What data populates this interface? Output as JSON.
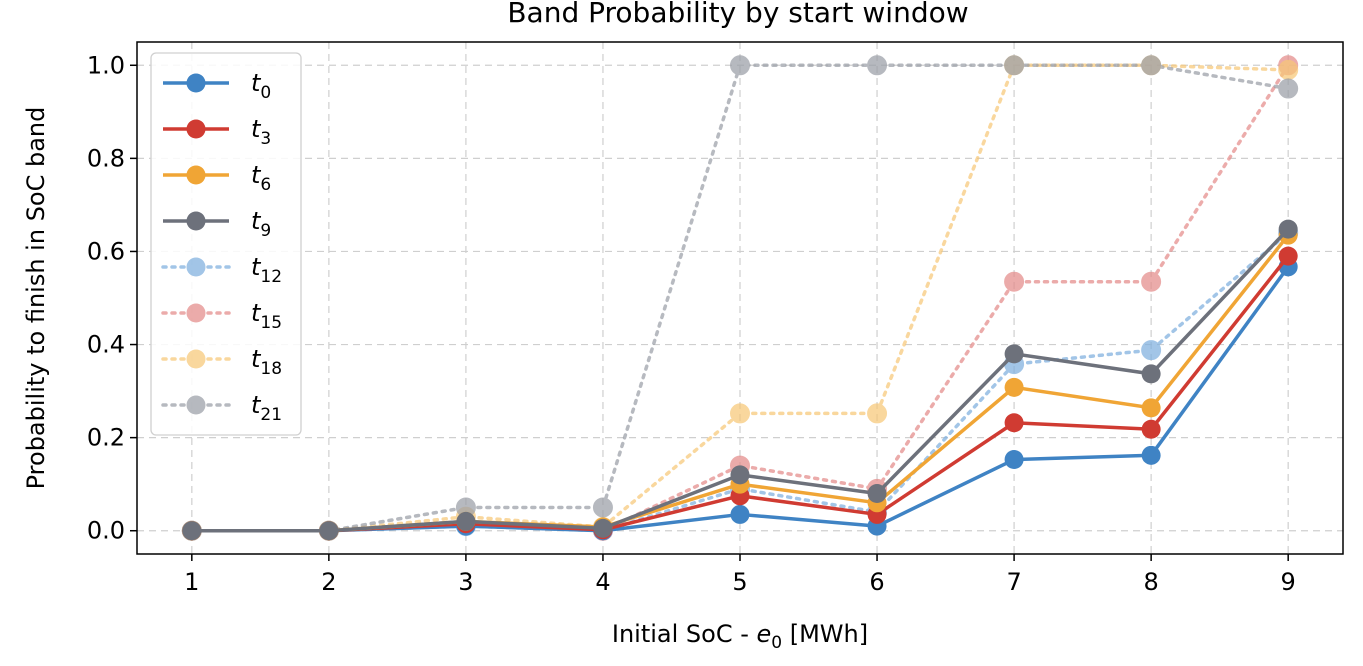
{
  "chart_data": {
    "type": "line",
    "title": "Band Probability by start window",
    "xlabel": "Initial SoC - e0 [MWh]",
    "xlabel_parts": {
      "prefix": "Initial SoC - ",
      "var": "e",
      "sub": "0",
      "suffix": " [MWh]"
    },
    "ylabel": "Probability to finish in SoC band",
    "x": [
      1,
      2,
      3,
      4,
      5,
      6,
      7,
      8,
      9
    ],
    "xlim": [
      0.6,
      9.4
    ],
    "ylim": [
      -0.05,
      1.05
    ],
    "xticks": [
      1,
      2,
      3,
      4,
      5,
      6,
      7,
      8,
      9
    ],
    "yticks": [
      0.0,
      0.2,
      0.4,
      0.6,
      0.8,
      1.0
    ],
    "grid": true,
    "legend_position": "upper-left",
    "series": [
      {
        "name": "t0",
        "var": "t",
        "sub": "0",
        "color": "#3f83c4",
        "style": "solid",
        "values": [
          0.0,
          0.0,
          0.01,
          0.0,
          0.035,
          0.01,
          0.153,
          0.162,
          0.567
        ]
      },
      {
        "name": "t3",
        "var": "t",
        "sub": "3",
        "color": "#d03b32",
        "style": "solid",
        "values": [
          0.0,
          0.0,
          0.015,
          0.002,
          0.075,
          0.035,
          0.232,
          0.218,
          0.59
        ]
      },
      {
        "name": "t6",
        "var": "t",
        "sub": "6",
        "color": "#f0a535",
        "style": "solid",
        "values": [
          0.0,
          0.0,
          0.02,
          0.008,
          0.1,
          0.06,
          0.308,
          0.264,
          0.635
        ]
      },
      {
        "name": "t9",
        "var": "t",
        "sub": "9",
        "color": "#6d717b",
        "style": "solid",
        "values": [
          0.0,
          0.0,
          0.02,
          0.005,
          0.12,
          0.08,
          0.38,
          0.337,
          0.648
        ]
      },
      {
        "name": "t12",
        "var": "t",
        "sub": "12",
        "color": "#7fb0df",
        "style": "dotted",
        "values": [
          0.0,
          0.0,
          0.01,
          0.0,
          0.09,
          0.04,
          0.358,
          0.388,
          0.64
        ]
      },
      {
        "name": "t15",
        "var": "t",
        "sub": "15",
        "color": "#e48c8a",
        "style": "dotted",
        "values": [
          0.0,
          0.0,
          0.015,
          0.0,
          0.14,
          0.09,
          0.535,
          0.535,
          1.0
        ]
      },
      {
        "name": "t18",
        "var": "t",
        "sub": "18",
        "color": "#f7c878",
        "style": "dotted",
        "values": [
          0.0,
          0.0,
          0.03,
          0.008,
          0.252,
          0.252,
          1.0,
          1.0,
          0.99
        ]
      },
      {
        "name": "t21",
        "var": "t",
        "sub": "21",
        "color": "#9b9fa7",
        "style": "dotted",
        "values": [
          0.0,
          0.0,
          0.05,
          0.05,
          1.0,
          1.0,
          1.0,
          1.0,
          0.95
        ]
      }
    ]
  }
}
